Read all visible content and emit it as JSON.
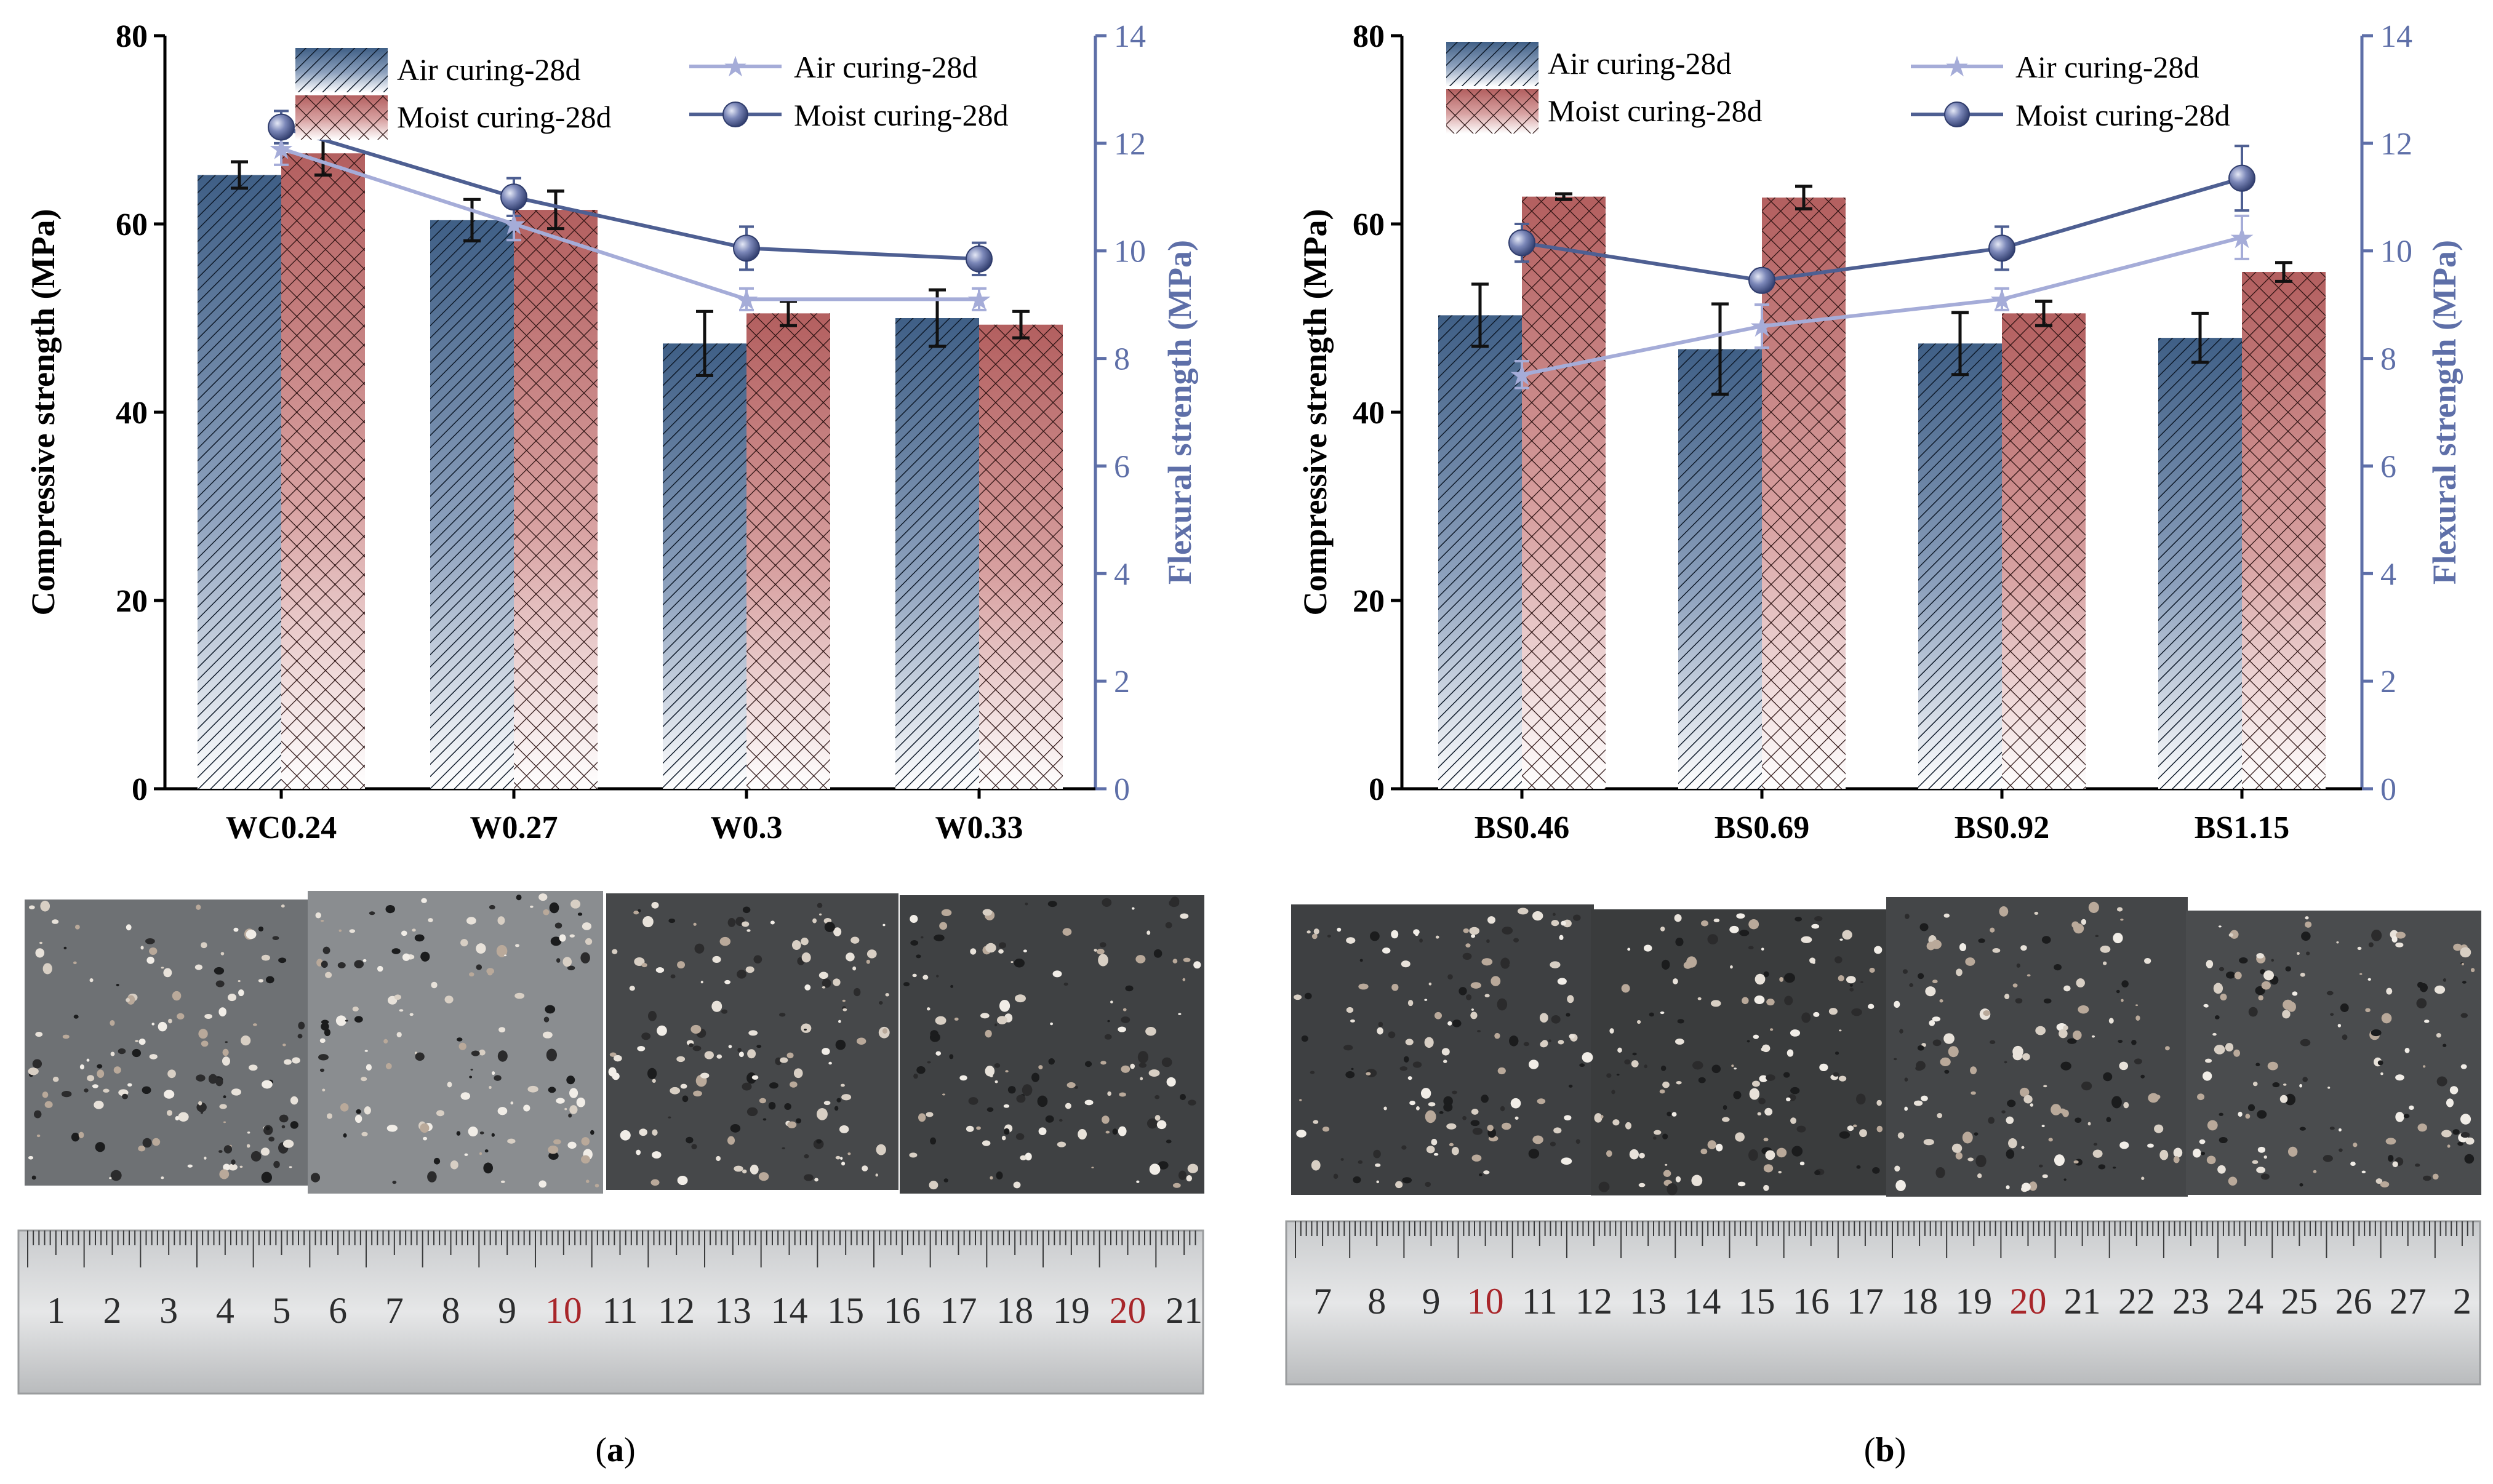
{
  "colors": {
    "air_bar": "#4a6b90",
    "moist_bar": "#b96a6a",
    "air_line": "#a5acd8",
    "moist_line": "#4e5f92",
    "right_axis": "#5e6fa8",
    "error": "#111111"
  },
  "legend": {
    "bar_air": "Air curing-28d",
    "bar_moist": "Moist curing-28d",
    "line_air": "Air curing-28d",
    "line_moist": "Moist curing-28d"
  },
  "chart_data": [
    {
      "panel": "(a)",
      "type": "bar",
      "categories": [
        "WC0.24",
        "W0.27",
        "W0.3",
        "W0.33"
      ],
      "ylabel": "Compressive strength (MPa)",
      "y2label": "Flexural strength (MPa)",
      "ylim": [
        0,
        80
      ],
      "y2lim": [
        0,
        14
      ],
      "yticks": [
        0,
        20,
        40,
        60,
        80
      ],
      "y2ticks": [
        0,
        2,
        4,
        6,
        8,
        10,
        12,
        14
      ],
      "series": [
        {
          "name": "Air curing-28d",
          "kind": "bar",
          "axis": "left",
          "values": [
            65.2,
            60.4,
            47.3,
            50.0
          ],
          "errors": [
            1.4,
            2.2,
            3.4,
            3.0
          ]
        },
        {
          "name": "Moist curing-28d",
          "kind": "bar",
          "axis": "left",
          "values": [
            67.5,
            61.5,
            50.5,
            49.3
          ],
          "errors": [
            2.3,
            2.0,
            1.3,
            1.4
          ]
        },
        {
          "name": "Air curing-28d",
          "kind": "line",
          "axis": "right",
          "values": [
            11.9,
            10.5,
            9.1,
            9.1
          ],
          "errors": [
            0.3,
            0.3,
            0.2,
            0.2
          ]
        },
        {
          "name": "Moist curing-28d",
          "kind": "line",
          "axis": "right",
          "values": [
            12.3,
            11.0,
            10.05,
            9.85
          ],
          "errors": [
            0.3,
            0.35,
            0.4,
            0.3
          ]
        }
      ]
    },
    {
      "panel": "(b)",
      "type": "bar",
      "categories": [
        "BS0.46",
        "BS0.69",
        "BS0.92",
        "BS1.15"
      ],
      "ylabel": "Compressive strength (MPa)",
      "y2label": "Flexural strength (MPa)",
      "ylim": [
        0,
        80
      ],
      "y2lim": [
        0,
        14
      ],
      "yticks": [
        0,
        20,
        40,
        60,
        80
      ],
      "y2ticks": [
        0,
        2,
        4,
        6,
        8,
        10,
        12,
        14
      ],
      "series": [
        {
          "name": "Air curing-28d",
          "kind": "bar",
          "axis": "left",
          "values": [
            50.3,
            46.7,
            47.3,
            47.9
          ],
          "errors": [
            3.3,
            4.8,
            3.3,
            2.6
          ]
        },
        {
          "name": "Moist curing-28d",
          "kind": "bar",
          "axis": "left",
          "values": [
            62.9,
            62.8,
            50.5,
            54.9
          ],
          "errors": [
            0.3,
            1.2,
            1.3,
            1.0
          ]
        },
        {
          "name": "Air curing-28d",
          "kind": "line",
          "axis": "right",
          "values": [
            7.7,
            8.6,
            9.1,
            10.25
          ],
          "errors": [
            0.25,
            0.4,
            0.2,
            0.4
          ]
        },
        {
          "name": "Moist curing-28d",
          "kind": "line",
          "axis": "right",
          "values": [
            10.15,
            9.45,
            10.05,
            11.35
          ],
          "errors": [
            0.35,
            0.2,
            0.4,
            0.6
          ]
        }
      ]
    }
  ],
  "photos": [
    {
      "ruler_ticks": [
        "1",
        "2",
        "3",
        "4",
        "5",
        "6",
        "7",
        "8",
        "9",
        "10",
        "11",
        "12",
        "13",
        "14",
        "15",
        "16",
        "17",
        "18",
        "19",
        "20",
        "21"
      ]
    },
    {
      "ruler_ticks": [
        "7",
        "8",
        "9",
        "10",
        "11",
        "12",
        "13",
        "14",
        "15",
        "16",
        "17",
        "18",
        "19",
        "20",
        "21",
        "22",
        "23",
        "24",
        "25",
        "26",
        "27",
        "2"
      ]
    }
  ]
}
